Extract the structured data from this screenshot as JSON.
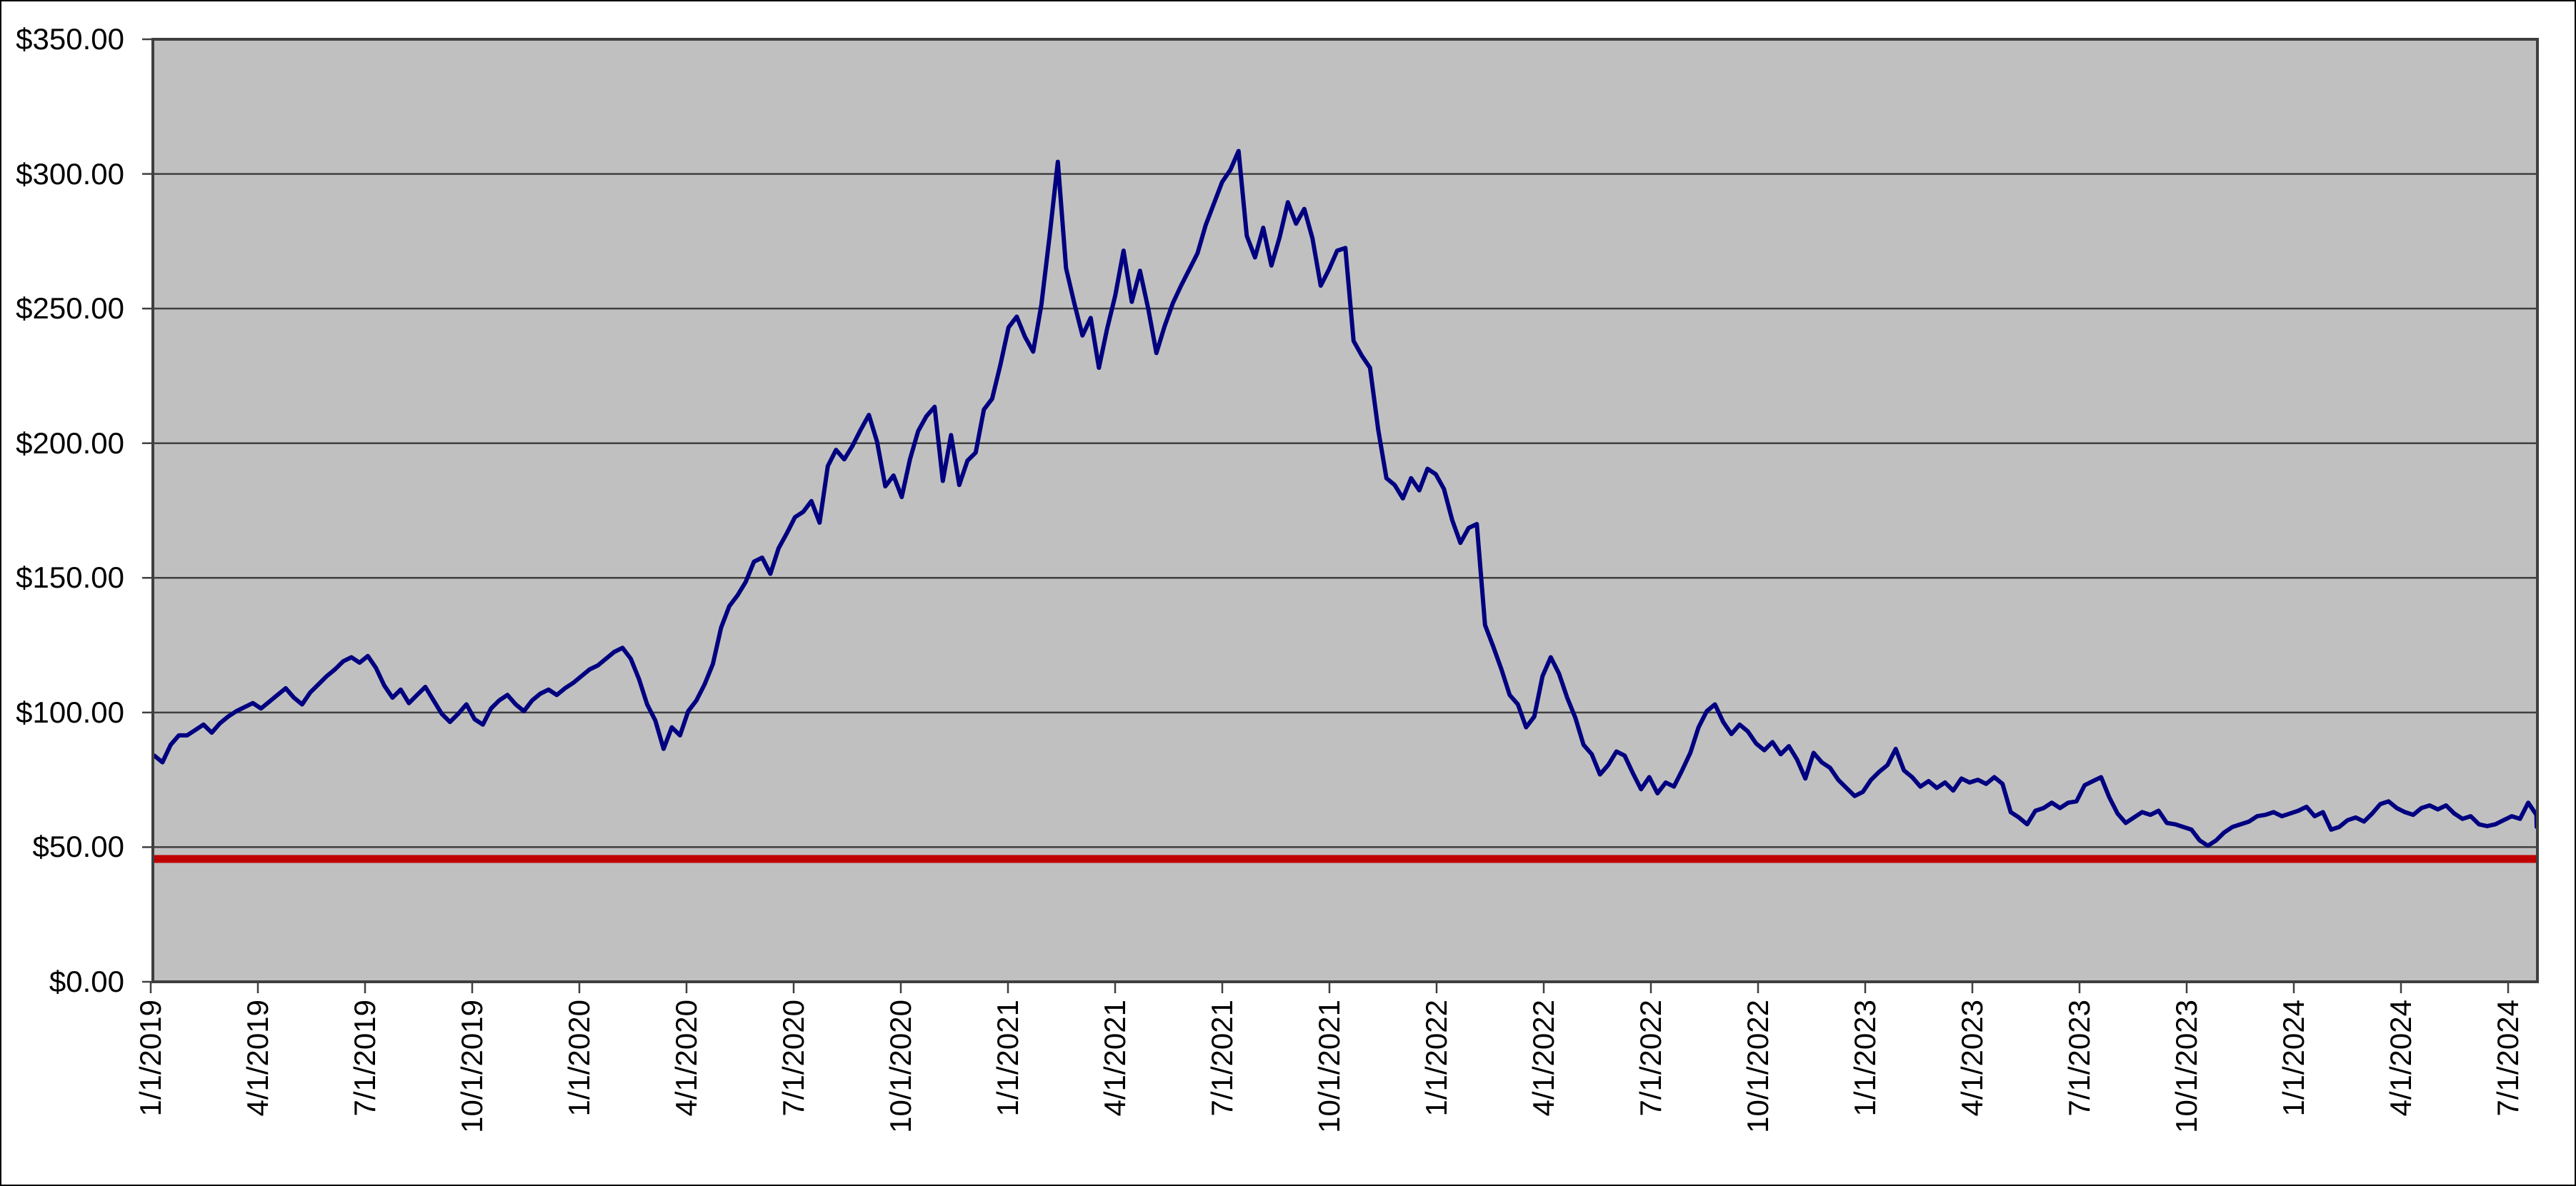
{
  "chart_data": {
    "type": "line",
    "title": "",
    "xlabel": "",
    "ylabel": "",
    "grid": true,
    "legend": false,
    "plot_bg_color": "#C0C0C0",
    "gridline_color": "#3F3F3F",
    "outer_border_color": "#000000",
    "y_axis": {
      "min": 0,
      "max": 350,
      "tick_step": 50,
      "format": "currency",
      "tick_labels": [
        "$350.00",
        "$300.00",
        "$250.00",
        "$200.00",
        "$150.00",
        "$100.00",
        "$50.00",
        "$0.00"
      ]
    },
    "x_axis": {
      "tick_labels": [
        "1/1/2019",
        "4/1/2019",
        "7/1/2019",
        "10/1/2019",
        "1/1/2020",
        "4/1/2020",
        "7/1/2020",
        "10/1/2020",
        "1/1/2021",
        "4/1/2021",
        "7/1/2021",
        "10/1/2021",
        "1/1/2022",
        "4/1/2022",
        "7/1/2022",
        "10/1/2022",
        "1/1/2023",
        "4/1/2023",
        "7/1/2023",
        "10/1/2023",
        "1/1/2024",
        "4/1/2024",
        "7/1/2024"
      ]
    },
    "series": [
      {
        "name": "price-line",
        "color": "#000080",
        "frequency": "weekly",
        "start_label": "1/1/2019",
        "end_label": "8/2024",
        "values": [
          84.0,
          81.5,
          88.0,
          91.5,
          91.5,
          93.5,
          95.5,
          92.5,
          96.0,
          98.5,
          100.5,
          102.0,
          103.5,
          101.5,
          104.0,
          106.5,
          109.0,
          105.5,
          103.0,
          107.5,
          110.5,
          113.5,
          116.0,
          119.0,
          120.5,
          118.5,
          121.0,
          116.5,
          110.0,
          105.5,
          108.5,
          103.5,
          106.5,
          109.5,
          104.5,
          99.5,
          96.5,
          99.5,
          103.0,
          97.5,
          95.5,
          101.5,
          104.5,
          106.5,
          103.0,
          100.5,
          104.5,
          107.0,
          108.5,
          106.5,
          109.0,
          111.0,
          113.5,
          116.0,
          117.5,
          120.0,
          122.5,
          124.0,
          120.0,
          112.5,
          103.0,
          97.0,
          86.5,
          94.5,
          91.5,
          100.5,
          104.5,
          110.5,
          118.0,
          131.5,
          139.5,
          143.5,
          148.5,
          156.0,
          157.5,
          151.5,
          161.0,
          166.5,
          172.5,
          174.5,
          178.5,
          170.5,
          191.5,
          197.5,
          194.0,
          199.0,
          205.0,
          210.5,
          200.5,
          184.0,
          188.0,
          180.0,
          194.0,
          204.5,
          210.0,
          213.5,
          186.0,
          203.0,
          184.5,
          193.5,
          196.5,
          212.5,
          216.5,
          229.0,
          243.0,
          247.0,
          239.5,
          234.0,
          251.5,
          277.0,
          304.5,
          265.0,
          252.0,
          240.0,
          246.5,
          228.0,
          242.5,
          255.0,
          271.5,
          252.5,
          264.0,
          250.0,
          233.5,
          243.5,
          252.0,
          258.5,
          264.5,
          270.5,
          281.0,
          289.0,
          297.0,
          301.5,
          308.5,
          277.0,
          269.0,
          280.0,
          266.0,
          276.5,
          289.5,
          281.5,
          287.0,
          276.0,
          258.5,
          264.5,
          271.5,
          272.5,
          238.0,
          232.5,
          228.0,
          205.0,
          187.0,
          184.5,
          179.5,
          187.0,
          182.5,
          190.5,
          188.5,
          183.0,
          171.5,
          163.0,
          168.5,
          170.0,
          132.5,
          124.5,
          116.0,
          106.5,
          103.0,
          94.5,
          98.5,
          113.5,
          120.5,
          114.5,
          105.5,
          98.0,
          88.0,
          84.5,
          77.0,
          80.5,
          85.5,
          84.0,
          77.5,
          71.5,
          76.0,
          70.0,
          74.0,
          72.5,
          78.5,
          85.0,
          94.5,
          100.5,
          103.0,
          96.5,
          92.0,
          95.5,
          93.0,
          88.5,
          86.0,
          89.0,
          84.5,
          87.5,
          82.5,
          75.5,
          85.0,
          81.5,
          79.5,
          75.0,
          72.0,
          69.0,
          70.5,
          75.0,
          78.0,
          80.5,
          86.5,
          78.5,
          76.0,
          72.5,
          74.5,
          72.0,
          74.0,
          71.0,
          75.5,
          74.0,
          75.0,
          73.5,
          76.0,
          73.5,
          63.0,
          61.0,
          58.5,
          63.5,
          64.5,
          66.5,
          64.5,
          66.5,
          67.0,
          73.0,
          74.5,
          76.0,
          68.5,
          62.5,
          59.0,
          61.0,
          63.0,
          62.0,
          63.5,
          59.0,
          58.5,
          57.5,
          56.5,
          52.5,
          50.5,
          52.5,
          55.5,
          57.5,
          58.5,
          59.5,
          61.5,
          62.0,
          63.0,
          61.5,
          62.5,
          63.5,
          65.0,
          61.5,
          63.0,
          56.5,
          57.5,
          60.0,
          61.0,
          59.5,
          62.5,
          66.0,
          67.0,
          64.5,
          63.0,
          62.0,
          64.5,
          65.5,
          64.0,
          65.5,
          62.5,
          60.5,
          61.5,
          58.5,
          57.8,
          58.5,
          60.0,
          61.5,
          60.5,
          66.5,
          62.0,
          57.5
        ]
      },
      {
        "name": "reference-line",
        "style": "horizontal-line",
        "color": "#C00000",
        "value": 45.6
      }
    ]
  }
}
